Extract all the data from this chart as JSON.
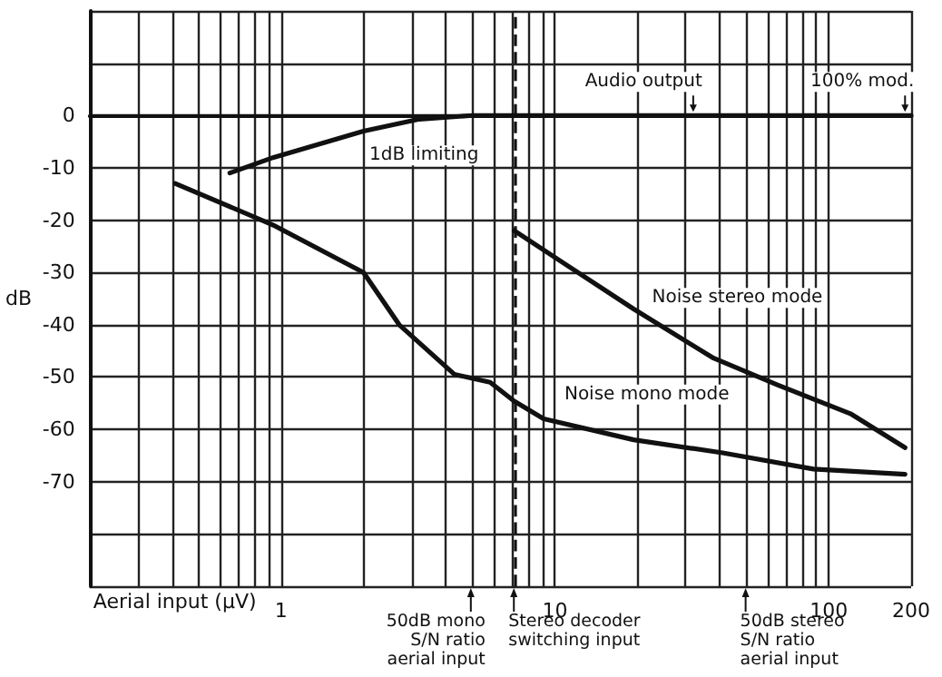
{
  "chart_data": {
    "type": "line",
    "xlabel": "Aerial input (µV)",
    "ylabel": "dB",
    "log": "x",
    "xlim": [
      0.2,
      200
    ],
    "ylim": [
      -90,
      20
    ],
    "xticks": [
      {
        "value": 0.3,
        "label": null
      },
      {
        "value": 0.4,
        "label": null
      },
      {
        "value": 0.5,
        "label": null
      },
      {
        "value": 0.6,
        "label": null
      },
      {
        "value": 0.7,
        "label": null
      },
      {
        "value": 0.8,
        "label": null
      },
      {
        "value": 0.9,
        "label": null
      },
      1,
      {
        "value": 2,
        "label": null
      },
      {
        "value": 3,
        "label": null
      },
      {
        "value": 4,
        "label": null
      },
      {
        "value": 5,
        "label": null
      },
      {
        "value": 6,
        "label": null
      },
      {
        "value": 7,
        "label": null
      },
      {
        "value": 8,
        "label": null
      },
      {
        "value": 9,
        "label": null
      },
      10,
      {
        "value": 20,
        "label": null
      },
      {
        "value": 30,
        "label": null
      },
      {
        "value": 40,
        "label": null
      },
      {
        "value": 50,
        "label": null
      },
      {
        "value": 60,
        "label": null
      },
      {
        "value": 70,
        "label": null
      },
      {
        "value": 80,
        "label": null
      },
      {
        "value": 90,
        "label": null
      },
      100,
      200
    ],
    "yticks": [
      {
        "value": -90,
        "label": null
      },
      {
        "value": -80,
        "label": null
      },
      -70,
      -60,
      -50,
      -40,
      -30,
      -20,
      -10,
      0,
      {
        "value": 10,
        "label": null
      },
      {
        "value": 20,
        "label": null
      }
    ],
    "grid": true,
    "marker": "none",
    "line_style": "solid",
    "series": [
      {
        "color": "#111111",
        "x": [
          0.65,
          0.94,
          2.0,
          3.2,
          5,
          10,
          50,
          200
        ],
        "values": [
          -11,
          -8,
          -3,
          -0.7,
          0,
          0,
          0,
          0
        ]
      },
      {
        "color": "#111111",
        "x": [
          0.41,
          0.85,
          0.94,
          2.0,
          2.7,
          4.3,
          5.8,
          7.1,
          9.1,
          19.4,
          41,
          88,
          190
        ],
        "values": [
          -13,
          -20,
          -21,
          -30,
          -40,
          -49.5,
          -51,
          -54.6,
          -58,
          -62,
          -64.5,
          -67.6,
          -68.6
        ]
      },
      {
        "color": "#111111",
        "x": [
          7.1,
          10.6,
          19.4,
          38,
          65,
          120,
          190
        ],
        "values": [
          -22,
          -28,
          -37,
          -46.4,
          -51.5,
          -57,
          -63.5
        ]
      }
    ],
    "ref_lines": [
      {
        "axis": "x",
        "value": 7.1,
        "line_style": "dashed",
        "color": "#111111"
      }
    ],
    "annotations": [
      {
        "text": "Audio output",
        "x": 32,
        "y": 0
      },
      {
        "text": "100% mod.",
        "x": 190,
        "y": 0
      },
      {
        "text": "1dB limiting",
        "x": 2.2,
        "y": -4
      },
      {
        "text": "Noise stereo mode",
        "x": 23,
        "y": -38.5
      },
      {
        "text": "Noise mono mode",
        "x": 11,
        "y": -57
      },
      "50dB mono\nS/N ratio\naerial input",
      "Stereo decoder\nswitching input",
      "50dB stereo\nS/N ratio\naerial input"
    ]
  }
}
